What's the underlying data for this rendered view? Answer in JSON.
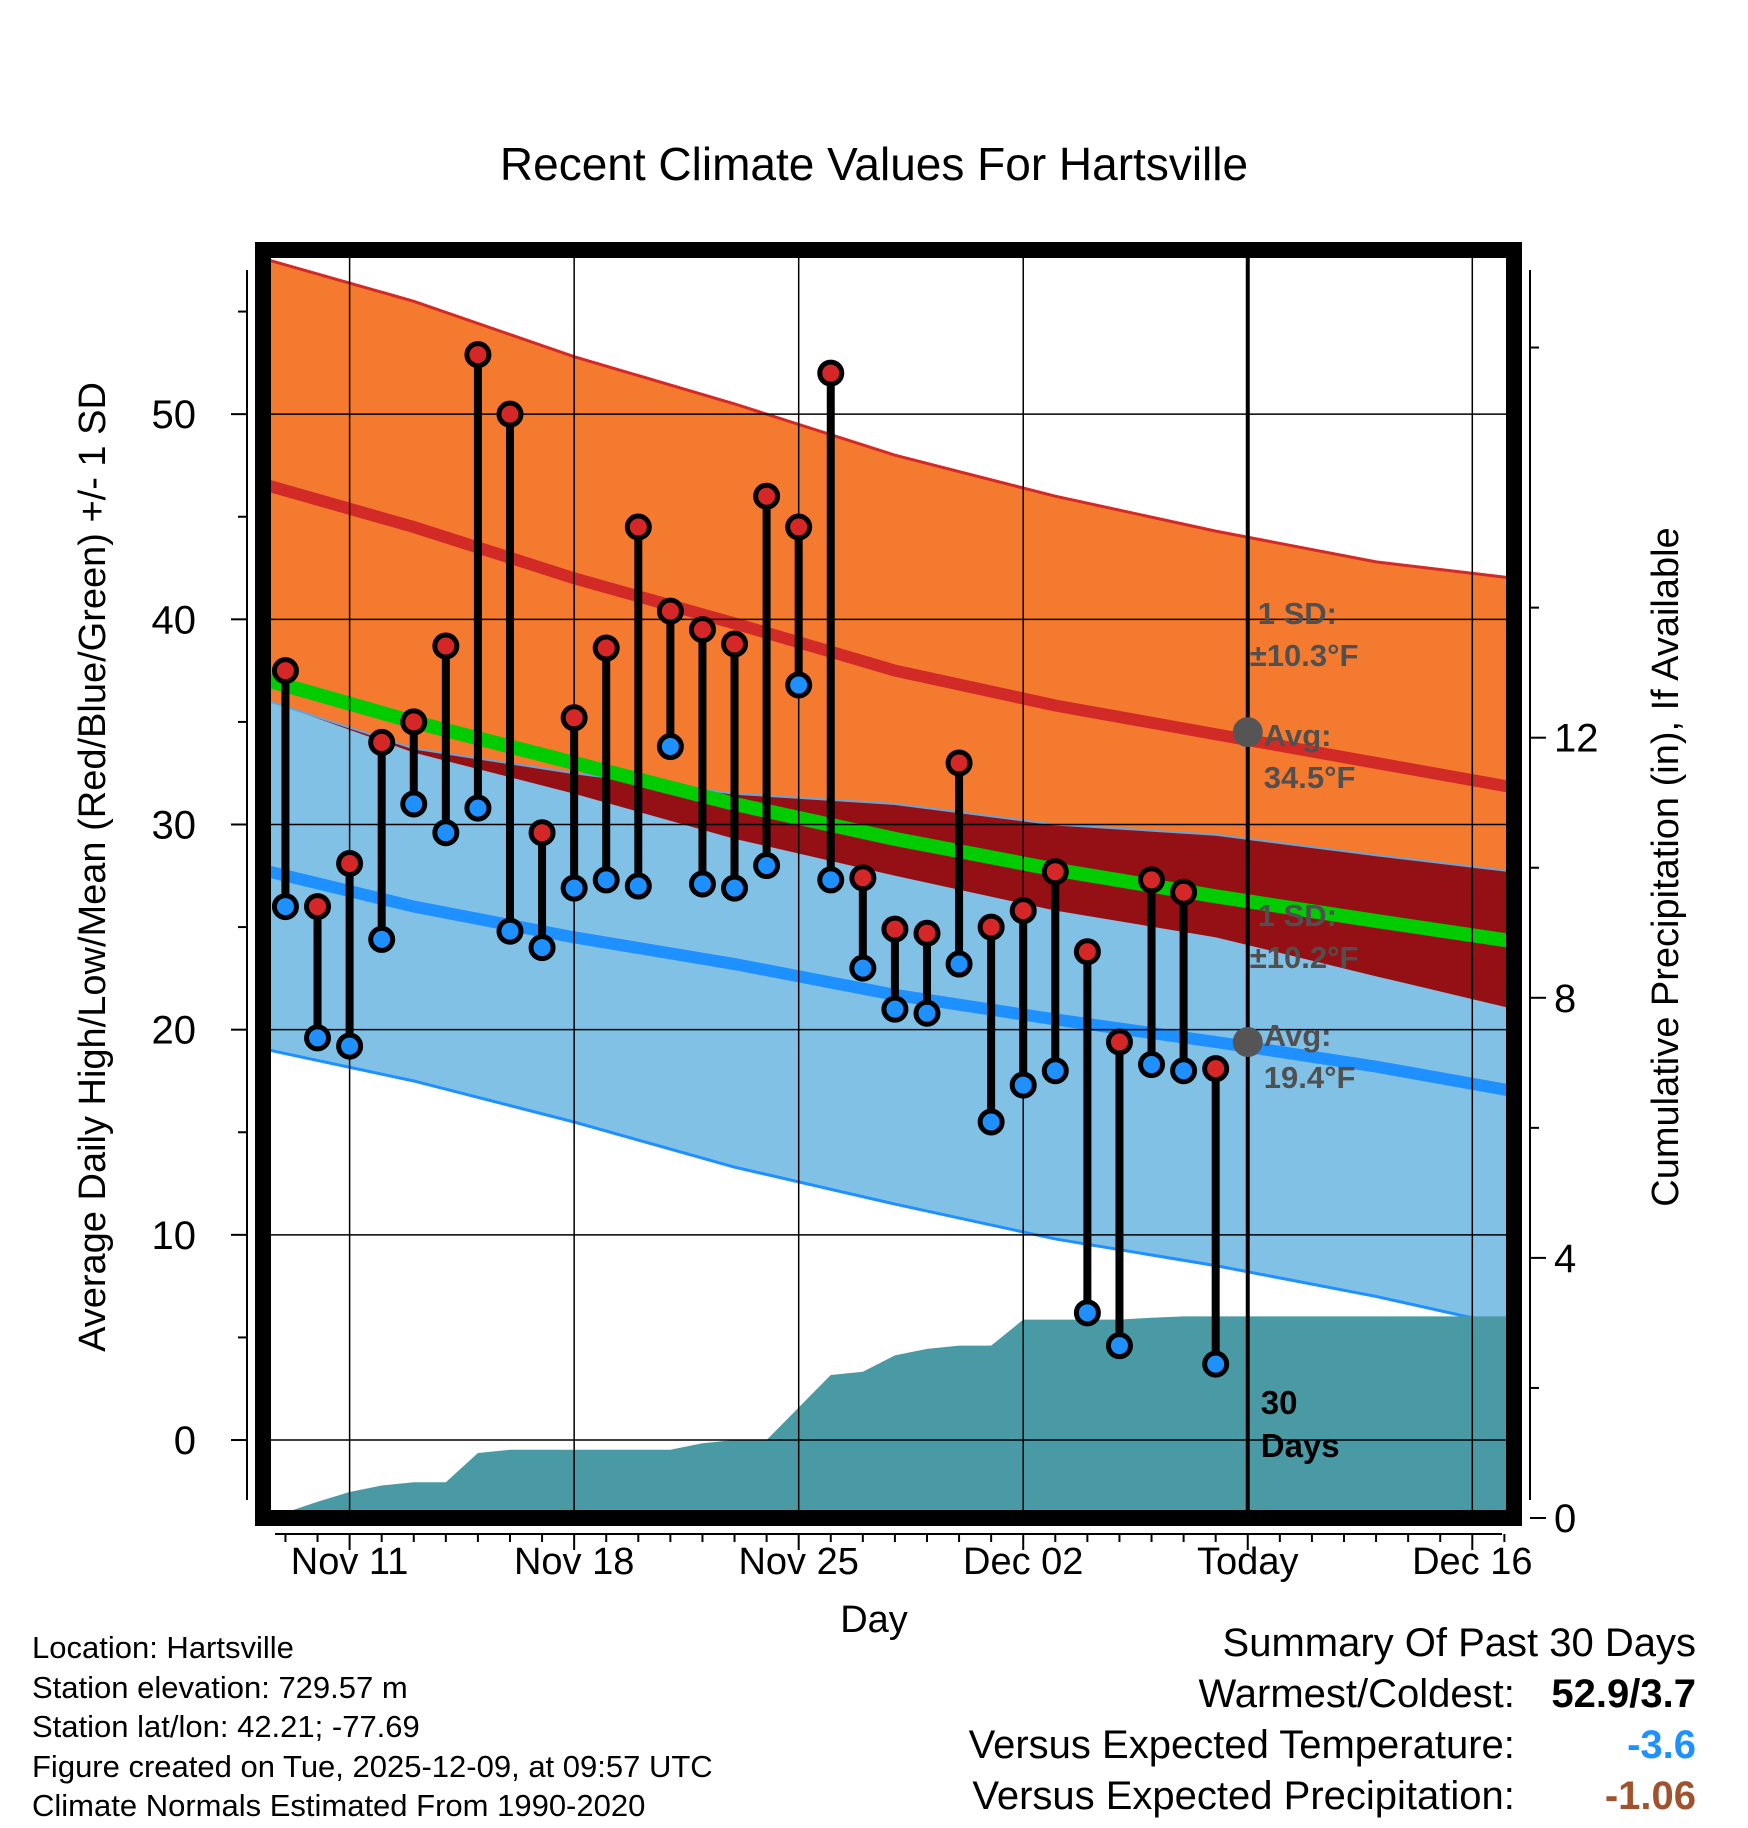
{
  "chart_data": {
    "type": "line",
    "title": "Recent Climate Values For Hartsville",
    "xlabel": "Day",
    "ylabel": "Average Daily High/Low/Mean (Red/Blue/Green) +/- 1 SD",
    "y2label": "Cumulative Precipitation (in), If Available",
    "ylim": [
      -3.8,
      58
    ],
    "y_ticks": [
      0,
      10,
      20,
      30,
      40,
      50
    ],
    "y2lim": [
      0,
      19.5
    ],
    "y2_ticks": [
      0,
      4,
      8,
      12
    ],
    "xlim": [
      8.3,
      47.3
    ],
    "x_ticks": [
      {
        "x": 11,
        "label": "Nov 11"
      },
      {
        "x": 18,
        "label": "Nov 18"
      },
      {
        "x": 25,
        "label": "Nov 25"
      },
      {
        "x": 32,
        "label": "Dec 02"
      },
      {
        "x": 39,
        "label": "Today"
      },
      {
        "x": 46,
        "label": "Dec 16"
      }
    ],
    "today_x": 39,
    "normals": {
      "x": [
        8.5,
        13,
        18,
        23,
        28,
        33,
        38,
        43,
        47.3
      ],
      "high_upper": [
        57.5,
        55.5,
        52.8,
        50.5,
        48.0,
        46.0,
        44.3,
        42.8,
        42.0
      ],
      "high_mean": [
        46.5,
        44.5,
        42.0,
        39.8,
        37.5,
        35.8,
        34.4,
        33.0,
        31.8
      ],
      "high_lower": [
        36.0,
        33.7,
        32.5,
        31.5,
        31.0,
        30.0,
        29.5,
        28.5,
        27.7
      ],
      "mean_line": [
        37.0,
        35.0,
        33.0,
        31.0,
        29.3,
        27.8,
        26.5,
        25.3,
        24.3
      ],
      "low_upper": [
        36.0,
        33.5,
        31.5,
        29.3,
        27.5,
        25.8,
        24.5,
        22.6,
        21.0
      ],
      "low_mean": [
        27.7,
        26.0,
        24.5,
        23.2,
        21.7,
        20.5,
        19.4,
        18.2,
        17.0
      ],
      "low_lower": [
        19.0,
        17.5,
        15.5,
        13.3,
        11.5,
        9.8,
        8.5,
        7.0,
        5.5
      ]
    },
    "series": [
      {
        "name": "Daily High",
        "color": "#d62728",
        "x": [
          9,
          10,
          11,
          12,
          13,
          14,
          15,
          16,
          17,
          18,
          19,
          20,
          21,
          22,
          23,
          24,
          25,
          26,
          27,
          28,
          29,
          30,
          31,
          32,
          33,
          34,
          35,
          36,
          37,
          38
        ],
        "values": [
          37.5,
          26.0,
          28.1,
          34.0,
          35.0,
          38.7,
          52.9,
          50.0,
          29.6,
          35.2,
          38.6,
          44.5,
          40.4,
          39.5,
          38.8,
          46.0,
          44.5,
          52.0,
          27.4,
          24.9,
          24.7,
          33.0,
          25.0,
          25.8,
          27.7,
          23.8,
          19.4,
          27.3,
          26.7,
          18.1
        ]
      },
      {
        "name": "Daily Low",
        "color": "#1e90ff",
        "x": [
          9,
          10,
          11,
          12,
          13,
          14,
          15,
          16,
          17,
          18,
          19,
          20,
          21,
          22,
          23,
          24,
          25,
          26,
          27,
          28,
          29,
          30,
          31,
          32,
          33,
          34,
          35,
          36,
          37,
          38
        ],
        "values": [
          26.0,
          19.6,
          19.2,
          24.4,
          31.0,
          29.6,
          30.8,
          24.8,
          24.0,
          26.9,
          27.3,
          27.0,
          33.8,
          27.1,
          26.9,
          28.0,
          36.8,
          27.3,
          23.0,
          21.0,
          20.8,
          23.2,
          15.5,
          17.3,
          18.0,
          6.2,
          4.6,
          18.3,
          18.0,
          3.7
        ]
      }
    ],
    "precip": {
      "x": [
        8.5,
        10,
        11,
        12,
        13,
        14,
        15,
        16,
        17,
        18,
        19,
        20,
        21,
        22,
        23,
        24,
        25,
        26,
        27,
        28,
        29,
        30,
        31,
        32,
        33,
        34,
        35,
        36,
        37,
        38,
        39,
        47.3
      ],
      "values": [
        0,
        0.25,
        0.4,
        0.5,
        0.55,
        0.55,
        1.0,
        1.05,
        1.05,
        1.05,
        1.05,
        1.05,
        1.05,
        1.15,
        1.2,
        1.2,
        1.7,
        2.2,
        2.25,
        2.5,
        2.6,
        2.65,
        2.65,
        3.05,
        3.05,
        3.05,
        3.05,
        3.08,
        3.1,
        3.1,
        3.1,
        3.1
      ]
    },
    "annotations": {
      "high_sd": {
        "line1": "1 SD:",
        "line2": "±10.3°F"
      },
      "high_avg": {
        "line1": "Avg:",
        "line2": "34.5°F",
        "value": 34.5
      },
      "low_sd": {
        "line1": "1 SD:",
        "line2": "±10.2°F"
      },
      "low_avg": {
        "line1": "Avg:",
        "line2": "19.4°F",
        "value": 19.4
      },
      "period": {
        "line1": "30",
        "line2": "Days"
      }
    },
    "colors": {
      "high_band": "#f47a2f",
      "high_line": "#d22a26",
      "overlap_band": "#941015",
      "mean_line": "#00cc00",
      "low_band": "#82c1e6",
      "low_line": "#1e90ff",
      "precip": "#4a9aa6",
      "avg_dot": "#555555",
      "annotation_text": "#505050"
    }
  },
  "info": {
    "location": "Location: Hartsville",
    "elevation": "Station elevation: 729.57 m",
    "latlon": "Station lat/lon: 42.21; -77.69",
    "created": "Figure created on Tue, 2025-12-09, at 09:57 UTC",
    "normals": "Climate Normals Estimated From 1990-2020"
  },
  "summary": {
    "title": "Summary Of Past 30 Days",
    "warmest_label": "Warmest/Coldest:",
    "warmest_value": "52.9/3.7",
    "temp_label": "Versus Expected Temperature:",
    "temp_value": "-3.6",
    "temp_color": "#1e90ff",
    "precip_label": "Versus Expected Precipitation:",
    "precip_value": "-1.06",
    "precip_color": "#a0522d"
  }
}
